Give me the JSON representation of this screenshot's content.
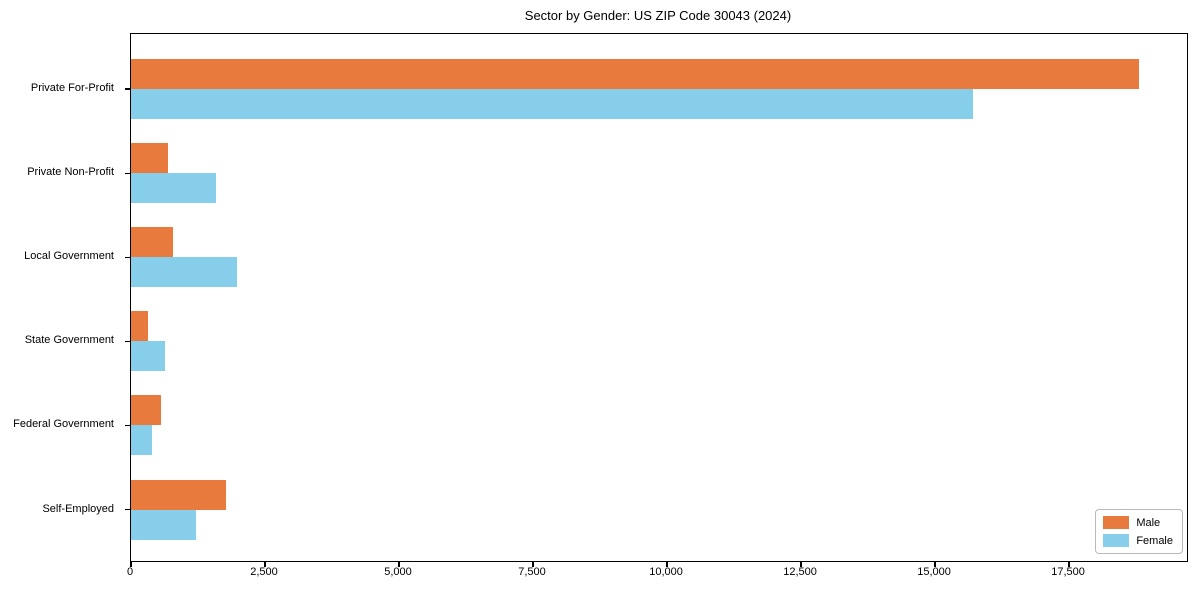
{
  "figure": {
    "title": "Sector by Gender: US ZIP Code 30043 (2024)",
    "background": "#ffffff"
  },
  "colors": {
    "male": "#e97a3d",
    "female": "#87ceeb",
    "spine": "#000000",
    "legend_border": "#b9b9b9"
  },
  "chart_data": {
    "type": "bar",
    "orientation": "horizontal",
    "title": "Sector by Gender: US ZIP Code 30043 (2024)",
    "categories": [
      "Private For-Profit",
      "Private Non-Profit",
      "Local Government",
      "State Government",
      "Federal Government",
      "Self-Employed"
    ],
    "series": [
      {
        "name": "Male",
        "color": "#e97a3d",
        "values": [
          18800,
          690,
          780,
          320,
          560,
          1780
        ]
      },
      {
        "name": "Female",
        "color": "#87ceeb",
        "values": [
          15700,
          1590,
          1980,
          640,
          390,
          1210
        ]
      }
    ],
    "xlabel": "",
    "ylabel": "",
    "xlim": [
      0,
      19700
    ],
    "x_ticks": [
      0,
      2500,
      5000,
      7500,
      10000,
      12500,
      15000,
      17500
    ],
    "x_tick_labels": [
      "0",
      "2,500",
      "5,000",
      "7,500",
      "10,000",
      "12,500",
      "15,000",
      "17,500"
    ],
    "grid": false,
    "legend": {
      "position": "lower right",
      "entries": [
        {
          "label": "Male",
          "color": "#e97a3d"
        },
        {
          "label": "Female",
          "color": "#87ceeb"
        }
      ]
    }
  }
}
